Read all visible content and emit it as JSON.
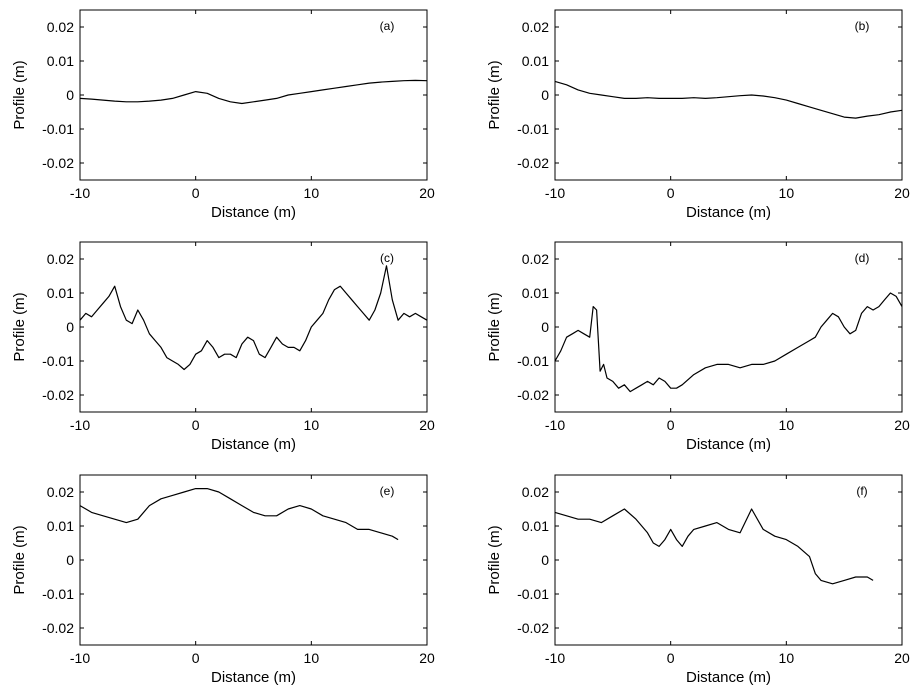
{
  "chart_data": [
    {
      "type": "line",
      "panel_label": "(a)",
      "xlabel": "Distance (m)",
      "ylabel": "Profile (m)",
      "xlim": [
        -10,
        20
      ],
      "ylim": [
        -0.025,
        0.025
      ],
      "xticks": [
        -10,
        0,
        10,
        20
      ],
      "xtick_labels": [
        "-10",
        "0",
        "10",
        "20"
      ],
      "yticks": [
        -0.02,
        -0.01,
        0,
        0.01,
        0.02
      ],
      "ytick_labels": [
        "-0.02",
        "-0.01",
        "0",
        "0.01",
        "0.02"
      ],
      "grid": false,
      "series": [
        {
          "x": [
            -10,
            -9,
            -8,
            -7,
            -6,
            -5,
            -4,
            -3,
            -2,
            -1,
            0,
            1,
            2,
            3,
            4,
            5,
            6,
            7,
            8,
            9,
            10,
            11,
            12,
            13,
            14,
            15,
            16,
            17,
            18,
            19,
            20
          ],
          "y": [
            -0.001,
            -0.0012,
            -0.0015,
            -0.0018,
            -0.002,
            -0.002,
            -0.0018,
            -0.0015,
            -0.001,
            0,
            0.001,
            0.0005,
            -0.001,
            -0.002,
            -0.0025,
            -0.002,
            -0.0015,
            -0.001,
            0,
            0.0005,
            0.001,
            0.0015,
            0.002,
            0.0025,
            0.003,
            0.0035,
            0.0038,
            0.004,
            0.0042,
            0.0043,
            0.0042
          ]
        }
      ]
    },
    {
      "type": "line",
      "panel_label": "(b)",
      "xlabel": "Distance (m)",
      "ylabel": "Profile (m)",
      "xlim": [
        -10,
        20
      ],
      "ylim": [
        -0.025,
        0.025
      ],
      "xticks": [
        -10,
        0,
        10,
        20
      ],
      "xtick_labels": [
        "-10",
        "0",
        "10",
        "20"
      ],
      "yticks": [
        -0.02,
        -0.01,
        0,
        0.01,
        0.02
      ],
      "ytick_labels": [
        "-0.02",
        "-0.01",
        "0",
        "0.01",
        "0.02"
      ],
      "grid": false,
      "series": [
        {
          "x": [
            -10,
            -9,
            -8,
            -7,
            -6,
            -5,
            -4,
            -3,
            -2,
            -1,
            0,
            1,
            2,
            3,
            4,
            5,
            6,
            7,
            8,
            9,
            10,
            11,
            12,
            13,
            14,
            15,
            16,
            17,
            18,
            19,
            20
          ],
          "y": [
            0.004,
            0.003,
            0.0015,
            0.0005,
            0,
            -0.0005,
            -0.001,
            -0.001,
            -0.0008,
            -0.001,
            -0.001,
            -0.001,
            -0.0008,
            -0.001,
            -0.0008,
            -0.0005,
            -0.0002,
            0,
            -0.0003,
            -0.0008,
            -0.0015,
            -0.0025,
            -0.0035,
            -0.0045,
            -0.0055,
            -0.0065,
            -0.0068,
            -0.0062,
            -0.0058,
            -0.005,
            -0.0045
          ]
        }
      ]
    },
    {
      "type": "line",
      "panel_label": "(c)",
      "xlabel": "Distance (m)",
      "ylabel": "Profile (m)",
      "xlim": [
        -10,
        20
      ],
      "ylim": [
        -0.025,
        0.025
      ],
      "xticks": [
        -10,
        0,
        10,
        20
      ],
      "xtick_labels": [
        "-10",
        "0",
        "10",
        "20"
      ],
      "yticks": [
        -0.02,
        -0.01,
        0,
        0.01,
        0.02
      ],
      "ytick_labels": [
        "-0.02",
        "-0.01",
        "0",
        "0.01",
        "0.02"
      ],
      "grid": false,
      "series": [
        {
          "x": [
            -10,
            -9.5,
            -9,
            -8.5,
            -8,
            -7.5,
            -7,
            -6.5,
            -6,
            -5.5,
            -5,
            -4.5,
            -4,
            -3.5,
            -3,
            -2.5,
            -2,
            -1.5,
            -1,
            -0.5,
            0,
            0.5,
            1,
            1.5,
            2,
            2.5,
            3,
            3.5,
            4,
            4.5,
            5,
            5.5,
            6,
            6.5,
            7,
            7.5,
            8,
            8.5,
            9,
            9.5,
            10,
            10.5,
            11,
            11.5,
            12,
            12.5,
            13,
            13.5,
            14,
            14.5,
            15,
            15.5,
            16,
            16.5,
            17,
            17.5,
            18,
            18.5,
            19,
            19.5,
            20
          ],
          "y": [
            0.002,
            0.004,
            0.003,
            0.005,
            0.007,
            0.009,
            0.012,
            0.006,
            0.002,
            0.001,
            0.005,
            0.002,
            -0.002,
            -0.004,
            -0.006,
            -0.009,
            -0.01,
            -0.011,
            -0.0125,
            -0.011,
            -0.008,
            -0.007,
            -0.004,
            -0.006,
            -0.009,
            -0.008,
            -0.008,
            -0.009,
            -0.005,
            -0.003,
            -0.004,
            -0.008,
            -0.009,
            -0.006,
            -0.003,
            -0.005,
            -0.006,
            -0.006,
            -0.007,
            -0.004,
            0,
            0.002,
            0.004,
            0.008,
            0.011,
            0.012,
            0.01,
            0.008,
            0.006,
            0.004,
            0.002,
            0.005,
            0.01,
            0.018,
            0.008,
            0.002,
            0.004,
            0.003,
            0.004,
            0.003,
            0.002
          ]
        }
      ]
    },
    {
      "type": "line",
      "panel_label": "(d)",
      "xlabel": "Distance (m)",
      "ylabel": "Profile (m)",
      "xlim": [
        -10,
        20
      ],
      "ylim": [
        -0.025,
        0.025
      ],
      "xticks": [
        -10,
        0,
        10,
        20
      ],
      "xtick_labels": [
        "-10",
        "0",
        "10",
        "20"
      ],
      "yticks": [
        -0.02,
        -0.01,
        0,
        0.01,
        0.02
      ],
      "ytick_labels": [
        "-0.02",
        "-0.01",
        "0",
        "0.01",
        "0.02"
      ],
      "grid": false,
      "series": [
        {
          "x": [
            -10,
            -9.5,
            -9,
            -8.5,
            -8,
            -7.5,
            -7,
            -6.7,
            -6.4,
            -6.1,
            -5.8,
            -5.5,
            -5,
            -4.5,
            -4,
            -3.5,
            -3,
            -2.5,
            -2,
            -1.5,
            -1,
            -0.5,
            0,
            0.5,
            1,
            2,
            3,
            4,
            5,
            6,
            7,
            8,
            9,
            10,
            11,
            12,
            12.5,
            13,
            13.5,
            14,
            14.5,
            15,
            15.5,
            16,
            16.5,
            17,
            17.5,
            18,
            18.5,
            19,
            19.5,
            20
          ],
          "y": [
            -0.01,
            -0.007,
            -0.003,
            -0.002,
            -0.001,
            -0.002,
            -0.003,
            0.006,
            0.005,
            -0.013,
            -0.011,
            -0.015,
            -0.016,
            -0.018,
            -0.017,
            -0.019,
            -0.018,
            -0.017,
            -0.016,
            -0.017,
            -0.015,
            -0.016,
            -0.018,
            -0.018,
            -0.017,
            -0.014,
            -0.012,
            -0.011,
            -0.011,
            -0.012,
            -0.011,
            -0.011,
            -0.01,
            -0.008,
            -0.006,
            -0.004,
            -0.003,
            0,
            0.002,
            0.004,
            0.003,
            0,
            -0.002,
            -0.001,
            0.004,
            0.006,
            0.005,
            0.006,
            0.008,
            0.01,
            0.009,
            0.006
          ]
        }
      ]
    },
    {
      "type": "line",
      "panel_label": "(e)",
      "xlabel": "Distance (m)",
      "ylabel": "Profile (m)",
      "xlim": [
        -10,
        20
      ],
      "ylim": [
        -0.025,
        0.025
      ],
      "xticks": [
        -10,
        0,
        10,
        20
      ],
      "xtick_labels": [
        "-10",
        "0",
        "10",
        "20"
      ],
      "yticks": [
        -0.02,
        -0.01,
        0,
        0.01,
        0.02
      ],
      "ytick_labels": [
        "-0.02",
        "-0.01",
        "0",
        "0.01",
        "0.02"
      ],
      "grid": false,
      "series": [
        {
          "x": [
            -10,
            -9,
            -8,
            -7,
            -6,
            -5,
            -4,
            -3,
            -2,
            -1,
            0,
            1,
            2,
            3,
            4,
            5,
            6,
            7,
            8,
            9,
            10,
            11,
            12,
            13,
            14,
            15,
            16,
            17,
            17.5
          ],
          "y": [
            0.016,
            0.014,
            0.013,
            0.012,
            0.011,
            0.012,
            0.016,
            0.018,
            0.019,
            0.02,
            0.021,
            0.021,
            0.02,
            0.018,
            0.016,
            0.014,
            0.013,
            0.013,
            0.015,
            0.016,
            0.015,
            0.013,
            0.012,
            0.011,
            0.009,
            0.009,
            0.008,
            0.007,
            0.006
          ]
        }
      ]
    },
    {
      "type": "line",
      "panel_label": "(f)",
      "xlabel": "Distance (m)",
      "ylabel": "Profile (m)",
      "xlim": [
        -10,
        20
      ],
      "ylim": [
        -0.025,
        0.025
      ],
      "xticks": [
        -10,
        0,
        10,
        20
      ],
      "xtick_labels": [
        "-10",
        "0",
        "10",
        "20"
      ],
      "yticks": [
        -0.02,
        -0.01,
        0,
        0.01,
        0.02
      ],
      "ytick_labels": [
        "-0.02",
        "-0.01",
        "0",
        "0.01",
        "0.02"
      ],
      "grid": false,
      "series": [
        {
          "x": [
            -10,
            -9,
            -8,
            -7,
            -6,
            -5,
            -4,
            -3,
            -2,
            -1.5,
            -1,
            -0.5,
            0,
            0.5,
            1,
            1.5,
            2,
            3,
            4,
            5,
            6,
            7,
            8,
            9,
            10,
            11,
            12,
            12.5,
            13,
            14,
            15,
            16,
            17,
            17.5
          ],
          "y": [
            0.014,
            0.013,
            0.012,
            0.012,
            0.011,
            0.013,
            0.015,
            0.012,
            0.008,
            0.005,
            0.004,
            0.006,
            0.009,
            0.006,
            0.004,
            0.007,
            0.009,
            0.01,
            0.011,
            0.009,
            0.008,
            0.015,
            0.009,
            0.007,
            0.006,
            0.004,
            0.001,
            -0.004,
            -0.006,
            -0.007,
            -0.006,
            -0.005,
            -0.005,
            -0.006
          ]
        }
      ]
    }
  ]
}
